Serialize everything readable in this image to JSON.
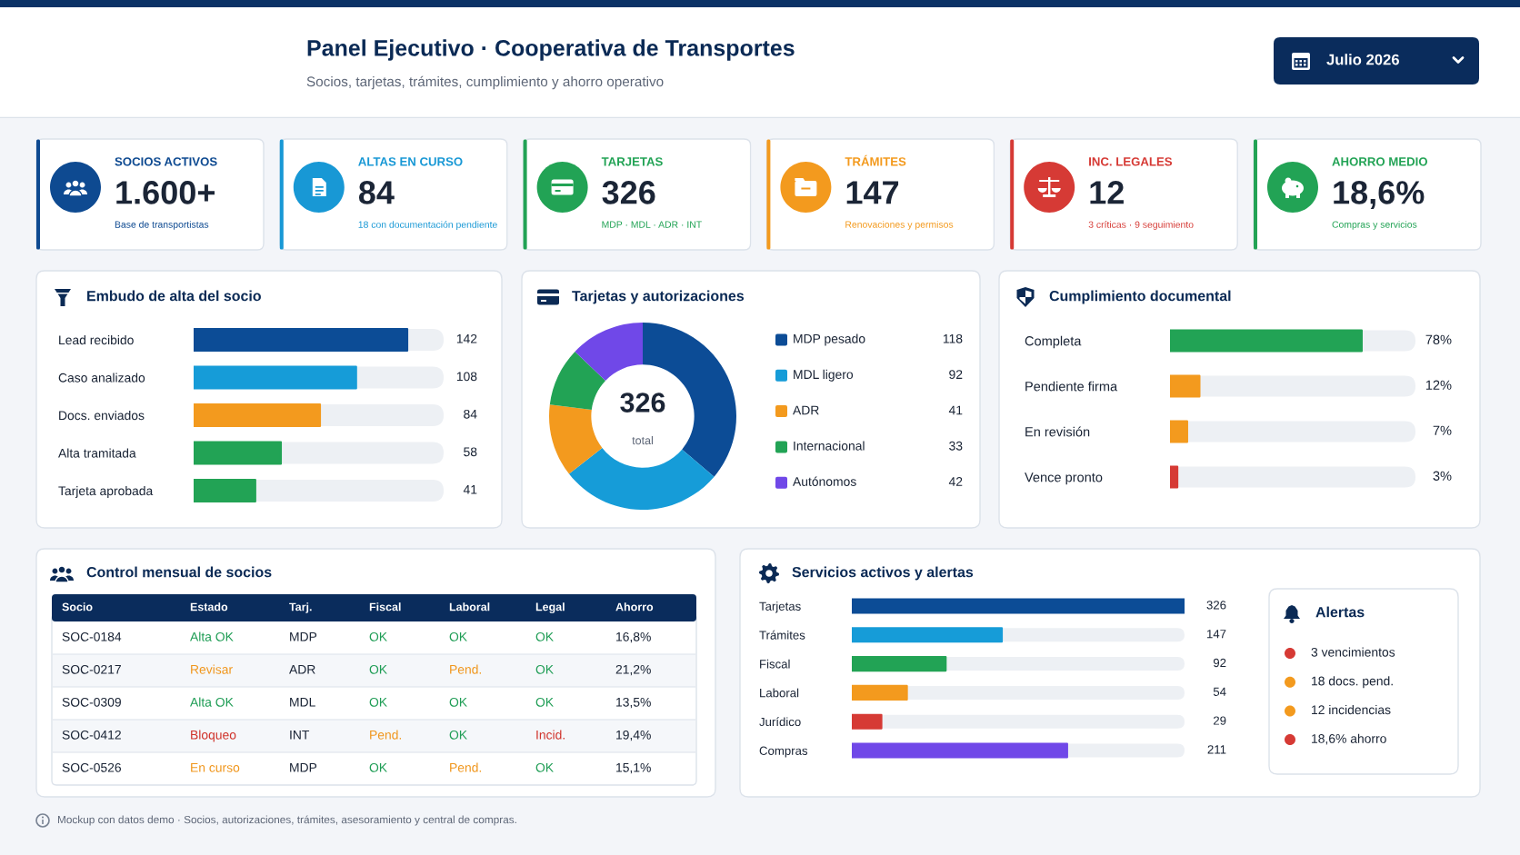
{
  "chart_data": [
    {
      "type": "other",
      "title": "Panel Ejecutivo · Cooperativa de Transportes",
      "subtitle": "Socios, tarjetas, trámites, cumplimiento y ahorro operativo",
      "annotations": [
        "Julio 2026"
      ]
    },
    {
      "type": "other",
      "title": "SOCIOS ACTIVOS",
      "annotations": [
        "1.600+",
        "Base de transportistas"
      ],
      "color": "#0e4a91"
    },
    {
      "type": "other",
      "title": "ALTAS EN CURSO",
      "annotations": [
        "84",
        "18 con documentación pendiente"
      ],
      "color": "#1898d5"
    },
    {
      "type": "other",
      "title": "TARJETAS",
      "annotations": [
        "326",
        "MDP · MDL · ADR · INT"
      ],
      "color": "#22a355"
    },
    {
      "type": "other",
      "title": "TRÁMITES",
      "annotations": [
        "147",
        "Renovaciones y permisos"
      ],
      "color": "#f39a1e"
    },
    {
      "type": "other",
      "title": "INC. LEGALES",
      "annotations": [
        "12",
        "3 críticas · 9 seguimiento"
      ],
      "color": "#d63a35"
    },
    {
      "type": "other",
      "title": "AHORRO MEDIO",
      "annotations": [
        "18,6%",
        "Compras y servicios"
      ],
      "color": "#22a355"
    },
    {
      "type": "bar",
      "orientation": "horizontal",
      "title": "Embudo de alta del socio",
      "categories": [
        "Lead recibido",
        "Caso analizado",
        "Docs. enviados",
        "Alta tramitada",
        "Tarjeta aprobada"
      ],
      "values": [
        142,
        108,
        84,
        58,
        41
      ],
      "colors": [
        "#0c4c96",
        "#169cd8",
        "#f39a1e",
        "#22a355",
        "#22a355"
      ],
      "data_labels": true
    },
    {
      "type": "donut",
      "title": "Tarjetas y autorizaciones",
      "categories": [
        "MDP pesado",
        "MDL ligero",
        "ADR",
        "Internacional",
        "Autónomos"
      ],
      "values": [
        118,
        92,
        41,
        33,
        42
      ],
      "colors": [
        "#0c4c96",
        "#169cd8",
        "#f39a1e",
        "#22a355",
        "#7048e8"
      ],
      "legend": "right",
      "data_labels": true,
      "annotations": [
        "326",
        "total"
      ]
    },
    {
      "type": "bar",
      "orientation": "horizontal",
      "title": "Cumplimiento documental",
      "categories": [
        "Completa",
        "Pendiente firma",
        "En revisión",
        "Vence pronto"
      ],
      "values": [
        78,
        12,
        7,
        3
      ],
      "colors": [
        "#22a355",
        "#f39a1e",
        "#f39a1e",
        "#d63a35"
      ],
      "value_labels": [
        "78%",
        "12%",
        "7%",
        "3%"
      ]
    },
    {
      "type": "other",
      "title": "Control mensual de socios",
      "categories": [
        "Socio",
        "Estado",
        "Tarj.",
        "Fiscal",
        "Laboral",
        "Legal",
        "Ahorro"
      ],
      "cell_labels": [
        [
          "SOC-0184",
          "Alta OK",
          "MDP",
          "OK",
          "OK",
          "OK",
          "16,8%"
        ],
        [
          "SOC-0217",
          "Revisar",
          "ADR",
          "OK",
          "Pend.",
          "OK",
          "21,2%"
        ],
        [
          "SOC-0309",
          "Alta OK",
          "MDL",
          "OK",
          "OK",
          "OK",
          "13,5%"
        ],
        [
          "SOC-0412",
          "Bloqueo",
          "INT",
          "Pend.",
          "OK",
          "Incid.",
          "19,4%"
        ],
        [
          "SOC-0526",
          "En curso",
          "MDP",
          "OK",
          "Pend.",
          "OK",
          "15,1%"
        ]
      ],
      "colors": [
        [
          null,
          "#1f9d55",
          null,
          "#1f9d55",
          "#1f9d55",
          "#1f9d55",
          null
        ],
        [
          null,
          "#f0961c",
          null,
          "#1f9d55",
          "#f0961c",
          "#1f9d55",
          null
        ],
        [
          null,
          "#1f9d55",
          null,
          "#1f9d55",
          "#1f9d55",
          "#1f9d55",
          null
        ],
        [
          null,
          "#d0342c",
          null,
          "#f0961c",
          "#1f9d55",
          "#d0342c",
          null
        ],
        [
          null,
          "#f0961c",
          null,
          "#1f9d55",
          "#f0961c",
          "#1f9d55",
          null
        ]
      ]
    },
    {
      "type": "bar",
      "orientation": "horizontal",
      "title": "Servicios activos y alertas",
      "categories": [
        "Tarjetas",
        "Trámites",
        "Fiscal",
        "Laboral",
        "Jurídico",
        "Compras"
      ],
      "values": [
        326,
        147,
        92,
        54,
        29,
        211
      ],
      "colors": [
        "#0c4c96",
        "#169cd8",
        "#22a355",
        "#f39a1e",
        "#d63a35",
        "#7048e8"
      ],
      "data_labels": true
    },
    {
      "type": "other",
      "title": "Alertas",
      "annotations": [
        "3 vencimientos",
        "18 docs. pend.",
        "12 incidencias",
        "18,6% ahorro"
      ],
      "colors": [
        "#d63a35",
        "#f39a1e",
        "#f39a1e",
        "#d63a35"
      ]
    },
    {
      "type": "other",
      "annotations": [
        "Mockup con datos demo · Socios, autorizaciones, trámites, asesoramiento y central de compras."
      ]
    }
  ]
}
